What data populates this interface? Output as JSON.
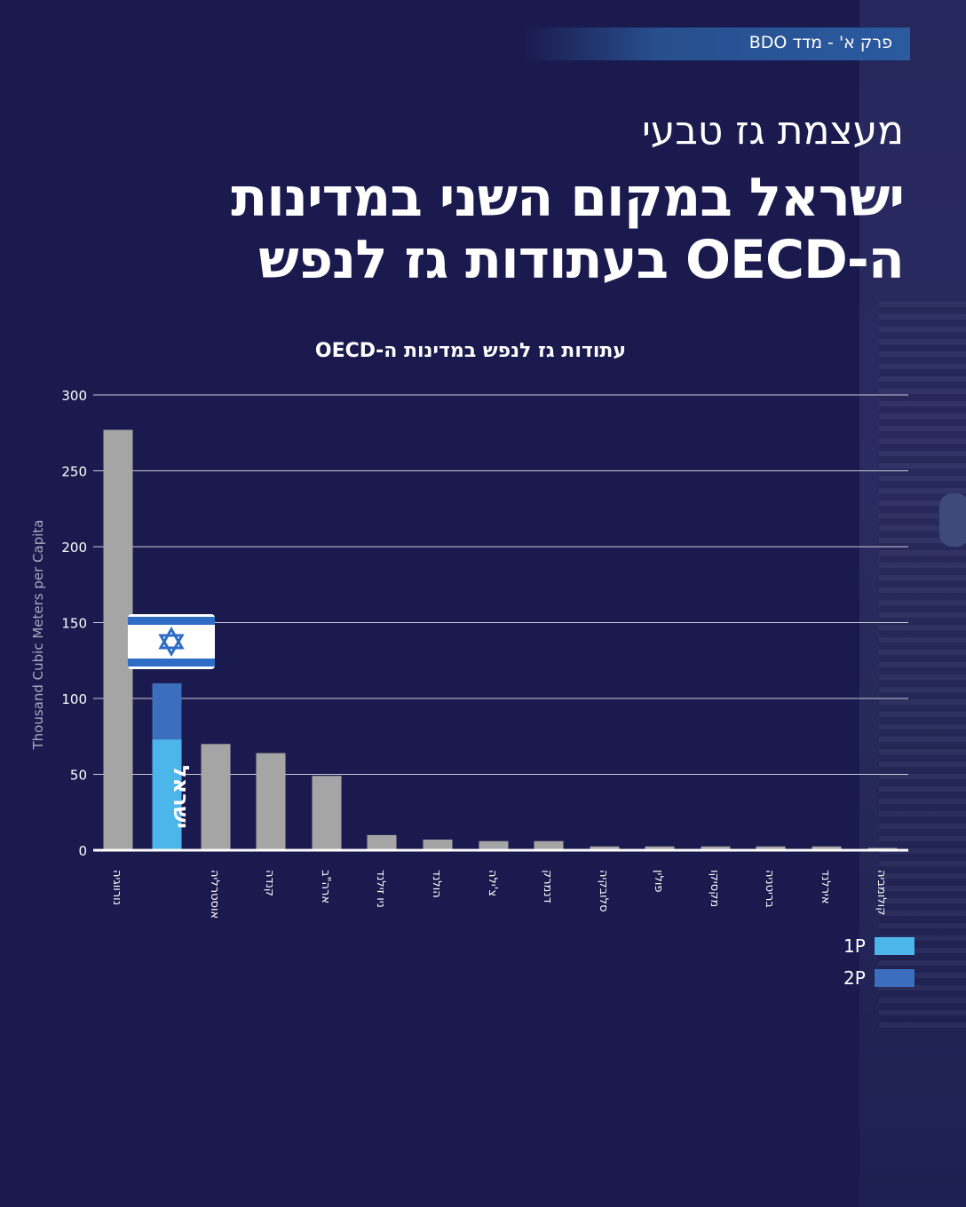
{
  "header": {
    "badge": "פרק א' - מדד BDO",
    "subtitle": "מעצמת גז טבעי",
    "title_line1": "ישראל במקום השני במדינות",
    "title_line2": "ה-OECD בעתודות גז לנפש"
  },
  "colors": {
    "background": "#1b1a4e",
    "bar_gray": "#a5a5a5",
    "israel_1p": "#4cb5ea",
    "israel_2p": "#3b6fbe",
    "flag_blue": "#2f6cc6"
  },
  "chart_data": {
    "type": "bar",
    "title": "עתודות גז לנפש במדינות ה-OECD",
    "ylabel": "Thousand Cubic Meters per Capita",
    "xlabel": "",
    "ylim": [
      0,
      300
    ],
    "yticks": [
      0,
      50,
      100,
      150,
      200,
      250,
      300
    ],
    "grid": true,
    "categories": [
      "נורווגיה",
      "ישראל",
      "אוסטרליה",
      "קנדה",
      "ארה\"ב",
      "ניו זילנד",
      "הולנד",
      "צ'ילה",
      "דנמרק",
      "סלובקיה",
      "פולין",
      "מקסיקו",
      "בריטניה",
      "אירלנד",
      "קולומביה"
    ],
    "values": [
      277,
      110,
      70,
      64,
      49,
      10,
      7,
      6,
      6,
      2.5,
      2.5,
      2.5,
      2.5,
      2.5,
      1.5
    ],
    "israel": {
      "label": "ישראל",
      "value_1p": 73,
      "value_2p": 110,
      "icon": "israel-flag-icon"
    },
    "legend": [
      {
        "label": "1P",
        "color": "#4cb5ea"
      },
      {
        "label": "2P",
        "color": "#3b6fbe"
      }
    ],
    "legend_position": "bottom-right"
  }
}
